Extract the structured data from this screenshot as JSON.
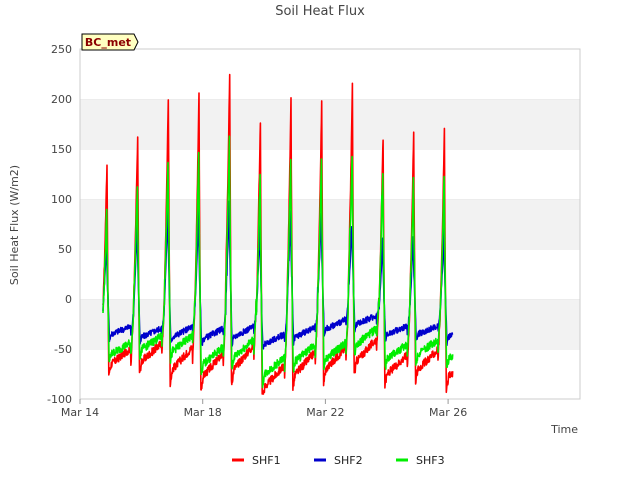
{
  "chart_data": {
    "type": "line",
    "title": "Soil Heat Flux",
    "xlabel": "Time",
    "ylabel": "Soil Heat Flux (W/m2)",
    "badge": "BC_met",
    "x_unit": "day offset from Mar 14",
    "xlim": [
      0,
      16.3
    ],
    "ylim": [
      -100,
      250
    ],
    "yticks": [
      -100,
      -50,
      0,
      50,
      100,
      150,
      200,
      250
    ],
    "xticks": [
      {
        "value": 0,
        "label": "Mar 14"
      },
      {
        "value": 4,
        "label": "Mar 18"
      },
      {
        "value": 8,
        "label": "Mar 22"
      },
      {
        "value": 12,
        "label": "Mar 26"
      }
    ],
    "grid": "horizontal bands",
    "legend_position": "bottom-center",
    "start": 0.75,
    "end": 12.15,
    "days": [
      {
        "t0": 0.75,
        "peaks": [
          135,
          60,
          90
        ],
        "mins": [
          -65,
          -35,
          -55
        ]
      },
      {
        "t0": 1.75,
        "peaks": [
          160,
          75,
          112
        ],
        "mins": [
          -62,
          -38,
          -50
        ]
      },
      {
        "t0": 2.75,
        "peaks": [
          200,
          92,
          140
        ],
        "mins": [
          -70,
          -38,
          -52
        ]
      },
      {
        "t0": 3.75,
        "peaks": [
          203,
          88,
          145
        ],
        "mins": [
          -77,
          -40,
          -65
        ]
      },
      {
        "t0": 4.75,
        "peaks": [
          228,
          95,
          162
        ],
        "mins": [
          -70,
          -38,
          -58
        ]
      },
      {
        "t0": 5.75,
        "peaks": [
          178,
          75,
          127
        ],
        "mins": [
          -88,
          -45,
          -75
        ]
      },
      {
        "t0": 6.75,
        "peaks": [
          198,
          88,
          140
        ],
        "mins": [
          -75,
          -38,
          -62
        ]
      },
      {
        "t0": 7.75,
        "peaks": [
          196,
          88,
          140
        ],
        "mins": [
          -70,
          -30,
          -60
        ]
      },
      {
        "t0": 8.75,
        "peaks": [
          212,
          80,
          145
        ],
        "mins": [
          -62,
          -25,
          -45
        ]
      },
      {
        "t0": 9.75,
        "peaks": [
          162,
          60,
          125
        ],
        "mins": [
          -75,
          -35,
          -60
        ]
      },
      {
        "t0": 10.75,
        "peaks": [
          165,
          65,
          120
        ],
        "mins": [
          -70,
          -35,
          -55
        ]
      },
      {
        "t0": 11.75,
        "peaks": [
          168,
          70,
          120
        ],
        "mins": [
          -78,
          -38,
          -60
        ]
      }
    ],
    "series": [
      {
        "name": "SHF1",
        "color": "#ff0000"
      },
      {
        "name": "SHF2",
        "color": "#0000cc"
      },
      {
        "name": "SHF3",
        "color": "#00ee00"
      }
    ]
  }
}
